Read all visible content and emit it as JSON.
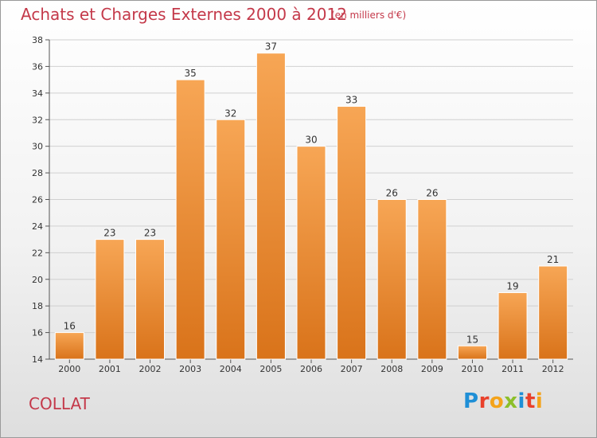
{
  "header": {
    "title": "Achats et Charges Externes 2000 à 2012",
    "subtitle": "(en milliers d'€)"
  },
  "footer": {
    "commune": "COLLAT",
    "logo_text": "Proxiti"
  },
  "colors": {
    "title": "#c4394a",
    "bar_top": "#f7a655",
    "bar_bottom": "#d9731a",
    "grid": "#d0d0d0"
  },
  "chart_data": {
    "type": "bar",
    "title": "Achats et Charges Externes 2000 à 2012",
    "subtitle": "(en milliers d'€)",
    "xlabel": "",
    "ylabel": "",
    "categories": [
      "2000",
      "2001",
      "2002",
      "2003",
      "2004",
      "2005",
      "2006",
      "2007",
      "2008",
      "2009",
      "2010",
      "2011",
      "2012"
    ],
    "values": [
      16,
      23,
      23,
      35,
      32,
      37,
      30,
      33,
      26,
      26,
      15,
      19,
      21
    ],
    "ylim": [
      14,
      38
    ],
    "yticks": [
      14,
      16,
      18,
      20,
      22,
      24,
      26,
      28,
      30,
      32,
      34,
      36,
      38
    ],
    "grid": true,
    "data_labels": true
  }
}
